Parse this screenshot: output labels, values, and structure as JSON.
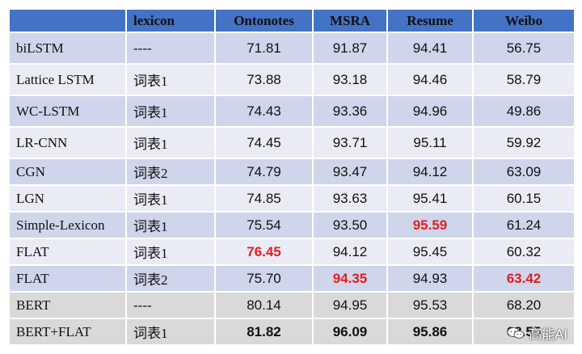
{
  "table": {
    "headers": [
      "",
      "lexicon",
      "Ontonotes",
      "MSRA",
      "Resume",
      "Weibo"
    ],
    "rows": [
      {
        "model": "biLSTM",
        "lexicon": "----",
        "ontonotes": "71.81",
        "msra": "91.87",
        "resume": "94.41",
        "weibo": "56.75"
      },
      {
        "model": "Lattice LSTM",
        "lexicon": "词表1",
        "ontonotes": "73.88",
        "msra": "93.18",
        "resume": "94.46",
        "weibo": "58.79"
      },
      {
        "model": "WC-LSTM",
        "lexicon": "词表1",
        "ontonotes": "74.43",
        "msra": "93.36",
        "resume": "94.96",
        "weibo": "49.86"
      },
      {
        "model": "LR-CNN",
        "lexicon": "词表1",
        "ontonotes": "74.45",
        "msra": "93.71",
        "resume": "95.11",
        "weibo": "59.92"
      },
      {
        "model": "CGN",
        "lexicon": "词表2",
        "ontonotes": "74.79",
        "msra": "93.47",
        "resume": "94.12",
        "weibo": "63.09"
      },
      {
        "model": "LGN",
        "lexicon": "词表1",
        "ontonotes": "74.85",
        "msra": "93.63",
        "resume": "95.41",
        "weibo": "60.15"
      },
      {
        "model": "Simple-Lexicon",
        "lexicon": "词表1",
        "ontonotes": "75.54",
        "msra": "93.50",
        "resume": "95.59",
        "weibo": "61.24"
      },
      {
        "model": "FLAT",
        "lexicon": "词表1",
        "ontonotes": "76.45",
        "msra": "94.12",
        "resume": "95.45",
        "weibo": "60.32"
      },
      {
        "model": "FLAT",
        "lexicon": "词表2",
        "ontonotes": "75.70",
        "msra": "94.35",
        "resume": "94.93",
        "weibo": "63.42"
      },
      {
        "model": "BERT",
        "lexicon": "----",
        "ontonotes": "80.14",
        "msra": "94.95",
        "resume": "95.53",
        "weibo": "68.20"
      },
      {
        "model": "BERT+FLAT",
        "lexicon": "词表1",
        "ontonotes": "81.82",
        "msra": "96.09",
        "resume": "95.86",
        "weibo": "68.55"
      }
    ],
    "highlight_color": "#e02020",
    "header_color": "#4472c4"
  },
  "watermark": {
    "label": "高能AI"
  }
}
